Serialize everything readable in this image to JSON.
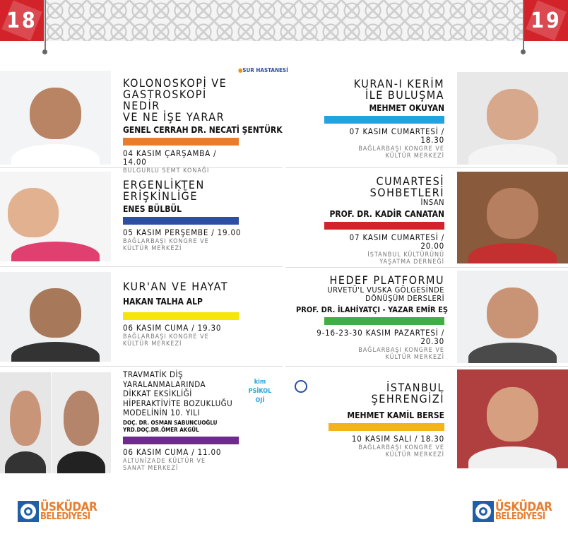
{
  "pages": {
    "left": "18",
    "right": "19"
  },
  "events": [
    {
      "title": [
        "KOLONOSKOPİ VE",
        "GASTROSKOPİ NEDİR",
        "VE NE İŞE YARAR"
      ],
      "speaker": [
        "GENEL CERRAH DR. NECATİ ŞENTÜRK"
      ],
      "date": "04 KASIM ÇARŞAMBA / 14.00",
      "place": [
        "BULGURLU SEMT KONAĞI"
      ],
      "color": "#e87d2d",
      "sponsor": "SUR HASTANESİ"
    },
    {
      "title": [
        "KURAN-I KERİM",
        "İLE BULUŞMA"
      ],
      "speaker": [
        "MEHMET OKUYAN"
      ],
      "date": "07 KASIM CUMARTESİ / 18.30",
      "place": [
        "BAĞLARBAŞI KONGRE VE",
        "KÜLTÜR MERKEZİ"
      ],
      "color": "#1ea5e0"
    },
    {
      "title": [
        "ERGENLİKTEN",
        "ERİŞKİNLİĞE"
      ],
      "speaker": [
        "ENES BÜLBÜL"
      ],
      "date": "05 KASIM PERŞEMBE / 19.00",
      "place": [
        "BAĞLARBAŞI KONGRE VE",
        "KÜLTÜR MERKEZİ"
      ],
      "color": "#2d4fa0"
    },
    {
      "title": [
        "CUMARTESİ",
        "SOHBETLERİ"
      ],
      "subtitle": [
        "İNSAN"
      ],
      "speaker": [
        "PROF. DR. KADİR CANATAN"
      ],
      "date": "07 KASIM CUMARTESİ / 20.00",
      "place": [
        "İSTANBUL KÜLTÜRÜNÜ",
        "YAŞATMA DERNEĞİ"
      ],
      "color": "#d2232a"
    },
    {
      "title": [
        "KUR'AN VE HAYAT"
      ],
      "speaker": [
        "HAKAN TALHA ALP"
      ],
      "date": "06 KASIM CUMA / 19.30",
      "place": [
        "BAĞLARBAŞI KONGRE VE",
        "KÜLTÜR MERKEZİ"
      ],
      "color": "#f5e50a"
    },
    {
      "title": [
        "HEDEF PLATFORMU"
      ],
      "subtitle": [
        "URVETÜ'L VUSKA GÖLGESİNDE",
        "DÖNÜŞÜM DERSLERİ"
      ],
      "speaker": [
        "PROF. DR. İLAHİYATÇI - YAZAR EMİR EŞ"
      ],
      "date": "9-16-23-30 KASIM PAZARTESİ / 20.30",
      "place": [
        "BAĞLARBAŞI KONGRE VE",
        "KÜLTÜR MERKEZİ"
      ],
      "color": "#3fae49"
    },
    {
      "title": [
        "TRAVMATİK DİŞ",
        "YARALANMALARINDA",
        "DİKKAT EKSİKLİĞİ",
        "HİPERAKTİVİTE BOZUKLUĞU",
        "MODELİNİN 10. YILI"
      ],
      "speaker": [
        "DOÇ. DR. OSMAN SABUNCUOĞLU",
        "YRD.DOÇ.DR.ÖMER AKGÜL"
      ],
      "date": "06 KASIM CUMA / 11.00",
      "place": [
        "ALTUNİZADE KÜLTÜR VE",
        "SANAT MERKEZİ"
      ],
      "color": "#6e2a8e",
      "sponsor": "kim PSİKOLOJİ"
    },
    {
      "title": [
        "İSTANBUL",
        "ŞEHRENGİZİ"
      ],
      "speaker": [
        "MEHMET KAMİL BERSE"
      ],
      "date": "10 KASIM SALI / 18.30",
      "place": [
        "BAĞLARBAŞI KONGRE VE",
        "KÜLTÜR MERKEZİ"
      ],
      "color": "#f6b21b"
    }
  ],
  "footer": {
    "logo_line1": "ÜSKÜDAR",
    "logo_line2": "BELEDİYESİ"
  }
}
